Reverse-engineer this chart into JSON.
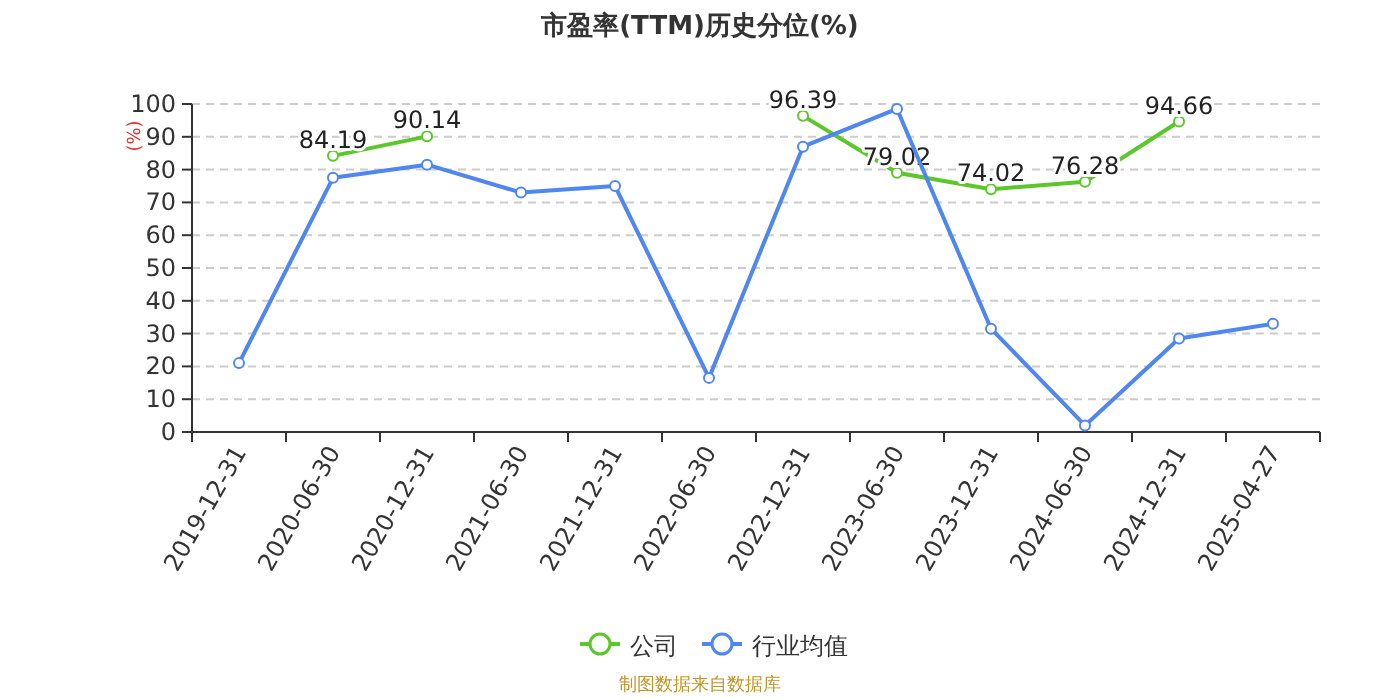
{
  "chart_data": {
    "type": "line",
    "title": "市盈率(TTM)历史分位(%)",
    "ylabel": "(%)",
    "categories": [
      "2019-12-31",
      "2020-06-30",
      "2020-12-31",
      "2021-06-30",
      "2021-12-31",
      "2022-06-30",
      "2022-12-31",
      "2023-06-30",
      "2023-12-31",
      "2024-06-30",
      "2024-12-31",
      "2025-04-27"
    ],
    "series": [
      {
        "name": "公司",
        "color": "#5cc72a",
        "values": [
          null,
          84.19,
          90.14,
          null,
          null,
          null,
          96.39,
          79.02,
          74.02,
          76.28,
          94.66,
          null
        ],
        "value_labels": [
          null,
          "84.19",
          "90.14",
          null,
          null,
          null,
          "96.39",
          "79.02",
          "74.02",
          "76.28",
          "94.66",
          null
        ]
      },
      {
        "name": "行业均值",
        "color": "#4f86f0",
        "values": [
          21,
          77.5,
          81.5,
          73,
          75,
          16.5,
          87,
          98.5,
          31.5,
          2,
          28.5,
          33
        ]
      }
    ],
    "ylim": [
      0,
      100
    ],
    "yticks": [
      0,
      10,
      20,
      30,
      40,
      50,
      60,
      70,
      80,
      90,
      100
    ],
    "grid": "y",
    "legend": "bottom",
    "marker": "circle",
    "line_style": "solid",
    "annotations": [
      "制图数据来自数据库"
    ]
  }
}
